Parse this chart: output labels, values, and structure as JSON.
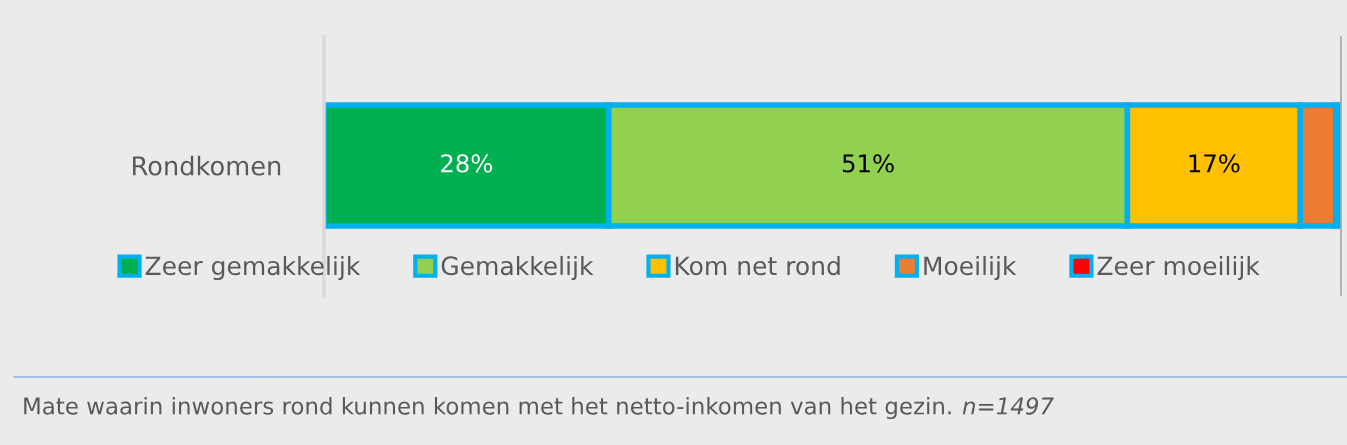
{
  "chart_data": {
    "type": "bar",
    "orientation": "horizontal",
    "stacked": true,
    "categories": [
      "Rondkomen"
    ],
    "series": [
      {
        "name": "Zeer gemakkelijk",
        "color": "#00b050",
        "values": [
          28
        ],
        "value_labels": [
          "28%"
        ]
      },
      {
        "name": "Gemakkelijk",
        "color": "#92d050",
        "values": [
          51
        ],
        "value_labels": [
          "51%"
        ]
      },
      {
        "name": "Kom net rond",
        "color": "#ffc000",
        "values": [
          17
        ],
        "value_labels": [
          "17%"
        ]
      },
      {
        "name": "Moeilijk",
        "color": "#ed7d31",
        "values": [
          3.5
        ],
        "value_labels": [
          null
        ]
      },
      {
        "name": "Zeer moeilijk",
        "color": "#ff0000",
        "values": [
          0.5
        ],
        "value_labels": [
          null
        ]
      }
    ],
    "xlim": [
      0,
      100
    ],
    "tick_labels": "y",
    "legend": "bottom",
    "annotations": [
      "Mate waarin inwoners rond kunnen komen met het netto-inkomen van het gezin.",
      "n=1497"
    ]
  }
}
